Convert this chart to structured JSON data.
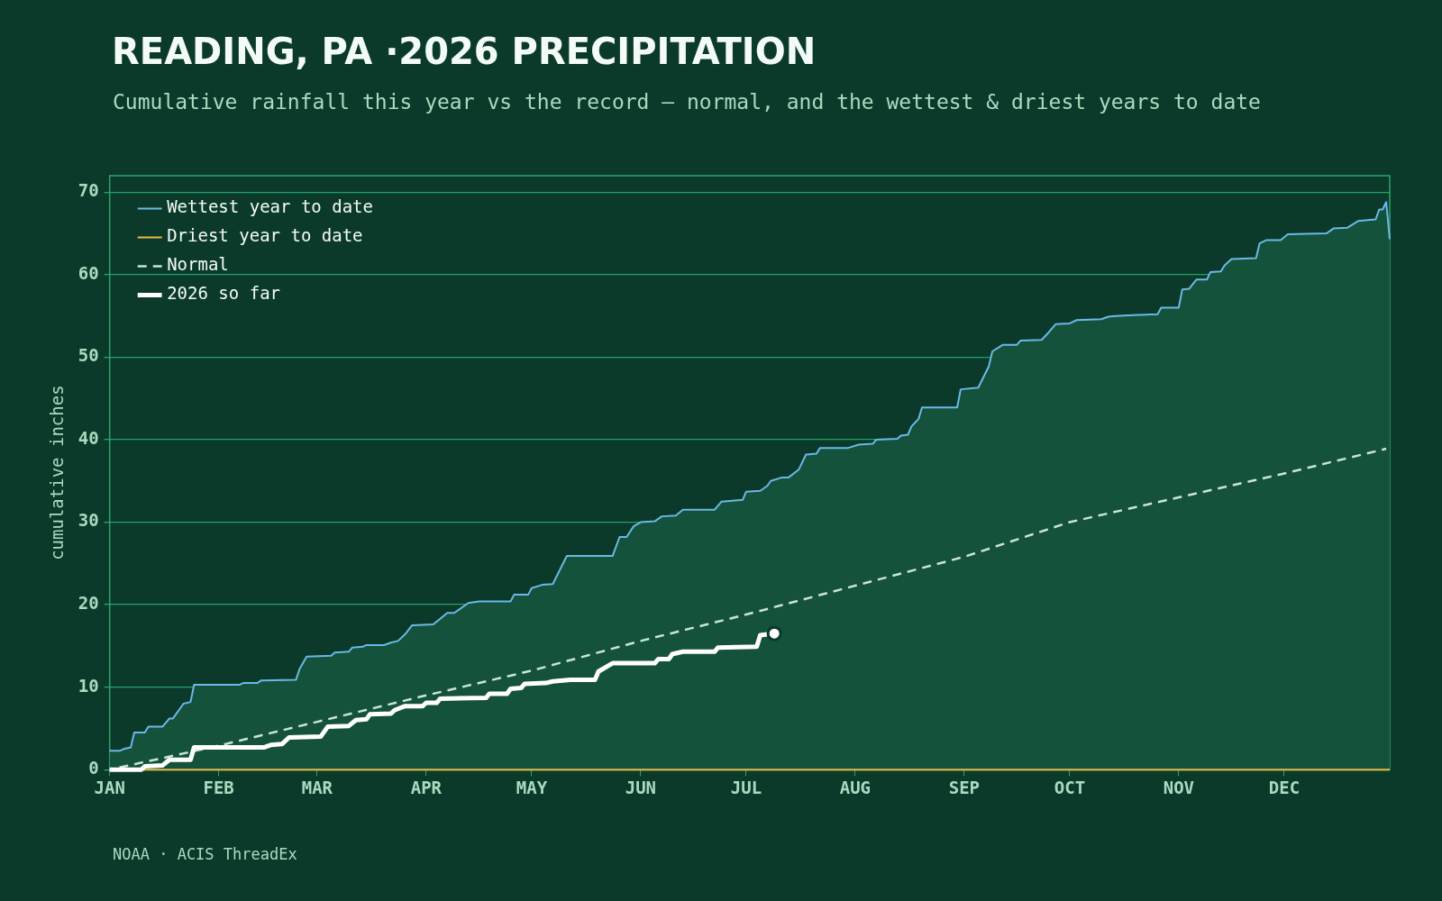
{
  "chart_data": {
    "type": "line",
    "title": "READING, PA ·2026 PRECIPITATION",
    "subtitle": "Cumulative rainfall this year vs the record — normal, and the wettest & driest years to date",
    "ylabel": "cumulative inches",
    "annotations": [
      "NOAA · ACIS ThreadEx"
    ],
    "xlim": [
      "--01-01",
      "--12-31"
    ],
    "xticks": [
      {
        "value": "--01-01",
        "label": "JAN"
      },
      {
        "value": "--02-01",
        "label": "FEB"
      },
      {
        "value": "--03-01",
        "label": "MAR"
      },
      {
        "value": "--04-01",
        "label": "APR"
      },
      {
        "value": "--05-01",
        "label": "MAY"
      },
      {
        "value": "--06-01",
        "label": "JUN"
      },
      {
        "value": "--07-01",
        "label": "JUL"
      },
      {
        "value": "--08-01",
        "label": "AUG"
      },
      {
        "value": "--09-01",
        "label": "SEP"
      },
      {
        "value": "--10-01",
        "label": "OCT"
      },
      {
        "value": "--11-01",
        "label": "NOV"
      },
      {
        "value": "--12-01",
        "label": "DEC"
      }
    ],
    "ylim": [
      0,
      72
    ],
    "yticks": [
      0,
      10,
      20,
      30,
      40,
      50,
      60,
      70
    ],
    "grid": "y",
    "legend": "top left",
    "series": [
      {
        "name": "Wettest year to date",
        "type": "area",
        "color": "#6cb8e8",
        "x": [
          "--01-01",
          "--01-04",
          "--01-05",
          "--01-07",
          "--01-08",
          "--01-11",
          "--01-12",
          "--01-16",
          "--01-18",
          "--01-19",
          "--01-22",
          "--01-24",
          "--01-25",
          "--02-07",
          "--02-08",
          "--02-12",
          "--02-13",
          "--02-23",
          "--02-24",
          "--02-26",
          "--03-05",
          "--03-06",
          "--03-10",
          "--03-11",
          "--03-14",
          "--03-15",
          "--03-20",
          "--03-22",
          "--03-24",
          "--03-26",
          "--03-28",
          "--04-03",
          "--04-05",
          "--04-07",
          "--04-09",
          "--04-13",
          "--04-16",
          "--04-25",
          "--04-26",
          "--04-30",
          "--05-01",
          "--05-04",
          "--05-07",
          "--05-11",
          "--05-24",
          "--05-26",
          "--05-28",
          "--05-30",
          "--06-01",
          "--06-05",
          "--06-07",
          "--06-11",
          "--06-13",
          "--06-22",
          "--06-24",
          "--06-30",
          "--07-01",
          "--07-05",
          "--07-07",
          "--07-08",
          "--07-11",
          "--07-13",
          "--07-16",
          "--07-18",
          "--07-21",
          "--07-22",
          "--07-30",
          "--08-02",
          "--08-06",
          "--08-07",
          "--08-13",
          "--08-14",
          "--08-16",
          "--08-17",
          "--08-19",
          "--08-20",
          "--08-30",
          "--08-31",
          "--09-05",
          "--09-08",
          "--09-09",
          "--09-12",
          "--09-16",
          "--09-17",
          "--09-23",
          "--09-25",
          "--09-27",
          "--10-01",
          "--10-03",
          "--10-10",
          "--10-12",
          "--10-14",
          "--10-19",
          "--10-26",
          "--10-27",
          "--11-01",
          "--11-02",
          "--11-04",
          "--11-06",
          "--11-09",
          "--11-10",
          "--11-13",
          "--11-14",
          "--11-16",
          "--11-23",
          "--11-24",
          "--11-26",
          "--11-30",
          "--12-02",
          "--12-13",
          "--12-15",
          "--12-19",
          "--12-22",
          "--12-27",
          "--12-28",
          "--12-29",
          "--12-30",
          "--12-31"
        ],
        "values": [
          2.3,
          2.3,
          2.5,
          2.7,
          4.5,
          4.5,
          5.2,
          5.2,
          6.2,
          6.2,
          8,
          8.2,
          10.3,
          10.3,
          10.5,
          10.5,
          10.8,
          10.9,
          12.2,
          13.7,
          13.8,
          14.2,
          14.3,
          14.8,
          14.9,
          15.1,
          15.1,
          15.4,
          15.6,
          16.4,
          17.5,
          17.6,
          18.3,
          19,
          19,
          20.2,
          20.4,
          20.4,
          21.2,
          21.2,
          22,
          22.4,
          22.5,
          25.9,
          25.9,
          28.2,
          28.2,
          29.5,
          30,
          30.1,
          30.7,
          30.8,
          31.5,
          31.5,
          32.5,
          32.7,
          33.7,
          33.8,
          34.4,
          35,
          35.4,
          35.4,
          36.4,
          38.2,
          38.3,
          39,
          39,
          39.4,
          39.5,
          40,
          40.1,
          40.5,
          40.6,
          41.6,
          42.5,
          43.9,
          43.9,
          46.1,
          46.3,
          48.9,
          50.7,
          51.5,
          51.5,
          52,
          52.1,
          53,
          54,
          54.1,
          54.5,
          54.6,
          54.9,
          55,
          55.1,
          55.2,
          56,
          56,
          58.2,
          58.3,
          59.4,
          59.4,
          60.3,
          60.4,
          61.1,
          61.9,
          62,
          63.8,
          64.2,
          64.2,
          64.9,
          65,
          65.6,
          65.7,
          66.5,
          66.7,
          67.9,
          67.9,
          68.8,
          64.3
        ]
      },
      {
        "name": "Driest year to date",
        "color": "#e8b84a",
        "x": [
          "--01-01",
          "--12-31"
        ],
        "values": [
          0,
          0
        ]
      },
      {
        "name": "Normal",
        "line_style": "dashed",
        "color": "#c8e6d4",
        "x": [
          "--01-01",
          "--02-01",
          "--03-01",
          "--04-01",
          "--05-01",
          "--06-01",
          "--07-01",
          "--08-01",
          "--09-01",
          "--10-01",
          "--11-01",
          "--12-01",
          "--12-30"
        ],
        "values": [
          0,
          2.9,
          5.8,
          9,
          12,
          15.6,
          18.8,
          22.3,
          25.8,
          30,
          33,
          35.9,
          38.9
        ]
      },
      {
        "name": "2026 so far",
        "color": "#ffffff",
        "x": [
          "--01-01",
          "--01-10",
          "--01-11",
          "--01-16",
          "--01-18",
          "--01-24",
          "--01-25",
          "--02-14",
          "--02-16",
          "--02-19",
          "--02-21",
          "--03-02",
          "--03-04",
          "--03-10",
          "--03-12",
          "--03-15",
          "--03-16",
          "--03-22",
          "--03-23",
          "--03-26",
          "--03-31",
          "--04-01",
          "--04-04",
          "--04-05",
          "--04-18",
          "--04-19",
          "--04-24",
          "--04-25",
          "--04-28",
          "--04-29",
          "--05-05",
          "--05-07",
          "--05-12",
          "--05-19",
          "--05-20",
          "--05-24",
          "--06-05",
          "--06-06",
          "--06-09",
          "--06-10",
          "--06-13",
          "--06-22",
          "--06-23",
          "--07-04",
          "--07-05",
          "--07-07"
        ],
        "values": [
          0,
          0,
          0.4,
          0.5,
          1.2,
          1.2,
          2.7,
          2.7,
          3,
          3.1,
          3.9,
          4,
          5.2,
          5.3,
          6,
          6.1,
          6.7,
          6.8,
          7.2,
          7.7,
          7.7,
          8.1,
          8.1,
          8.6,
          8.7,
          9.2,
          9.2,
          9.8,
          9.9,
          10.4,
          10.5,
          10.7,
          10.9,
          10.9,
          11.9,
          12.9,
          12.9,
          13.4,
          13.4,
          14,
          14.3,
          14.3,
          14.8,
          14.9,
          16.3,
          16.4
        ]
      },
      {
        "type": "scatter",
        "marker": "circle",
        "color": "#ffffff",
        "x": [
          "--07-09"
        ],
        "values": [
          16.5
        ]
      }
    ]
  }
}
